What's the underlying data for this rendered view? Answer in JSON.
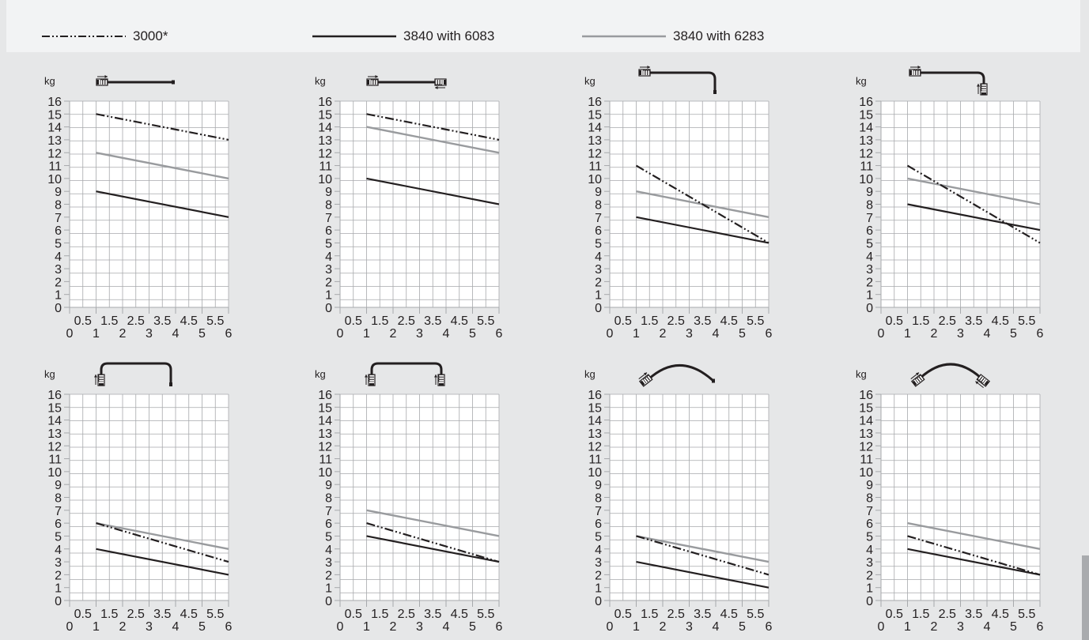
{
  "legend": {
    "items": [
      {
        "key": "s3000",
        "label": "3000*"
      },
      {
        "key": "s6083",
        "label": "3840 with 6083"
      },
      {
        "key": "s6283",
        "label": "3840 with 6283"
      }
    ]
  },
  "colors": {
    "s3000": "#231f20",
    "s6083": "#231f20",
    "s6283": "#999b9e",
    "grid": "#a7a9ac",
    "panel": "#ffffff",
    "text": "#231f20",
    "page": "#e6e7e8",
    "legend_bg": "#f2f3f4"
  },
  "icons": [
    "straight-feed-icon",
    "straight-two-feeds-icon",
    "curved-end-down-icon",
    "curved-end-feed-icon",
    "u-bend-icon",
    "u-bend-two-feeds-icon",
    "arc-icon",
    "arc-two-feeds-icon"
  ],
  "chart_data": [
    {
      "type": "line",
      "ylabel": "kg",
      "ylim": [
        0,
        16
      ],
      "xlim": [
        0,
        6
      ],
      "y_ticks": [
        "0",
        "1",
        "2",
        "3",
        "4",
        "5",
        "6",
        "7",
        "8",
        "9",
        "10",
        "11",
        "12",
        "13",
        "14",
        "15",
        "16"
      ],
      "x_ticks": [
        "0",
        "1",
        "2",
        "3",
        "4",
        "5",
        "6"
      ],
      "x_half_ticks": [
        "0.5",
        "1.5",
        "2.5",
        "3.5",
        "4.5",
        "5.5"
      ],
      "series": [
        {
          "key": "s3000",
          "points": [
            [
              1,
              15
            ],
            [
              6,
              13
            ]
          ]
        },
        {
          "key": "s6083",
          "points": [
            [
              1,
              9
            ],
            [
              6,
              7
            ]
          ]
        },
        {
          "key": "s6283",
          "points": [
            [
              1,
              12
            ],
            [
              6,
              10
            ]
          ]
        }
      ]
    },
    {
      "type": "line",
      "ylabel": "kg",
      "ylim": [
        0,
        16
      ],
      "xlim": [
        0,
        6
      ],
      "y_ticks": [
        "0",
        "1",
        "2",
        "3",
        "4",
        "5",
        "6",
        "7",
        "8",
        "9",
        "10",
        "11",
        "12",
        "13",
        "14",
        "15",
        "16"
      ],
      "x_ticks": [
        "0",
        "1",
        "2",
        "3",
        "4",
        "5",
        "6"
      ],
      "x_half_ticks": [
        "0.5",
        "1.5",
        "2.5",
        "3.5",
        "4.5",
        "5.5"
      ],
      "series": [
        {
          "key": "s3000",
          "points": [
            [
              1,
              15
            ],
            [
              6,
              13
            ]
          ]
        },
        {
          "key": "s6083",
          "points": [
            [
              1,
              10
            ],
            [
              6,
              8
            ]
          ]
        },
        {
          "key": "s6283",
          "points": [
            [
              1,
              14
            ],
            [
              6,
              12
            ]
          ]
        }
      ]
    },
    {
      "type": "line",
      "ylabel": "kg",
      "ylim": [
        0,
        16
      ],
      "xlim": [
        0,
        6
      ],
      "y_ticks": [
        "0",
        "1",
        "2",
        "3",
        "4",
        "5",
        "6",
        "7",
        "8",
        "9",
        "10",
        "11",
        "12",
        "13",
        "14",
        "15",
        "16"
      ],
      "x_ticks": [
        "0",
        "1",
        "2",
        "3",
        "4",
        "5",
        "6"
      ],
      "x_half_ticks": [
        "0.5",
        "1.5",
        "2.5",
        "3.5",
        "4.5",
        "5.5"
      ],
      "series": [
        {
          "key": "s3000",
          "points": [
            [
              1,
              11
            ],
            [
              6,
              5
            ]
          ]
        },
        {
          "key": "s6083",
          "points": [
            [
              1,
              7
            ],
            [
              6,
              5
            ]
          ]
        },
        {
          "key": "s6283",
          "points": [
            [
              1,
              9
            ],
            [
              6,
              7
            ]
          ]
        }
      ]
    },
    {
      "type": "line",
      "ylabel": "kg",
      "ylim": [
        0,
        16
      ],
      "xlim": [
        0,
        6
      ],
      "y_ticks": [
        "0",
        "1",
        "2",
        "3",
        "4",
        "5",
        "6",
        "7",
        "8",
        "9",
        "10",
        "11",
        "12",
        "13",
        "14",
        "15",
        "16"
      ],
      "x_ticks": [
        "0",
        "1",
        "2",
        "3",
        "4",
        "5",
        "6"
      ],
      "x_half_ticks": [
        "0.5",
        "1.5",
        "2.5",
        "3.5",
        "4.5",
        "5.5"
      ],
      "series": [
        {
          "key": "s3000",
          "points": [
            [
              1,
              11
            ],
            [
              6,
              5
            ]
          ]
        },
        {
          "key": "s6083",
          "points": [
            [
              1,
              8
            ],
            [
              6,
              6
            ]
          ]
        },
        {
          "key": "s6283",
          "points": [
            [
              1,
              10
            ],
            [
              6,
              8
            ]
          ]
        }
      ]
    },
    {
      "type": "line",
      "ylabel": "kg",
      "ylim": [
        0,
        16
      ],
      "xlim": [
        0,
        6
      ],
      "y_ticks": [
        "0",
        "1",
        "2",
        "3",
        "4",
        "5",
        "6",
        "7",
        "8",
        "9",
        "10",
        "11",
        "12",
        "13",
        "14",
        "15",
        "16"
      ],
      "x_ticks": [
        "0",
        "1",
        "2",
        "3",
        "4",
        "5",
        "6"
      ],
      "x_half_ticks": [
        "0.5",
        "1.5",
        "2.5",
        "3.5",
        "4.5",
        "5.5"
      ],
      "series": [
        {
          "key": "s3000",
          "points": [
            [
              1,
              6
            ],
            [
              6,
              3
            ]
          ]
        },
        {
          "key": "s6083",
          "points": [
            [
              1,
              4
            ],
            [
              6,
              2
            ]
          ]
        },
        {
          "key": "s6283",
          "points": [
            [
              1,
              6
            ],
            [
              6,
              4
            ]
          ]
        }
      ]
    },
    {
      "type": "line",
      "ylabel": "kg",
      "ylim": [
        0,
        16
      ],
      "xlim": [
        0,
        6
      ],
      "y_ticks": [
        "0",
        "1",
        "2",
        "3",
        "4",
        "5",
        "6",
        "7",
        "8",
        "9",
        "10",
        "11",
        "12",
        "13",
        "14",
        "15",
        "16"
      ],
      "x_ticks": [
        "0",
        "1",
        "2",
        "3",
        "4",
        "5",
        "6"
      ],
      "x_half_ticks": [
        "0.5",
        "1.5",
        "2.5",
        "3.5",
        "4.5",
        "5.5"
      ],
      "series": [
        {
          "key": "s3000",
          "points": [
            [
              1,
              6
            ],
            [
              6,
              3
            ]
          ]
        },
        {
          "key": "s6083",
          "points": [
            [
              1,
              5
            ],
            [
              6,
              3
            ]
          ]
        },
        {
          "key": "s6283",
          "points": [
            [
              1,
              7
            ],
            [
              6,
              5
            ]
          ]
        }
      ]
    },
    {
      "type": "line",
      "ylabel": "kg",
      "ylim": [
        0,
        16
      ],
      "xlim": [
        0,
        6
      ],
      "y_ticks": [
        "0",
        "1",
        "2",
        "3",
        "4",
        "5",
        "6",
        "7",
        "8",
        "9",
        "10",
        "11",
        "12",
        "13",
        "14",
        "15",
        "16"
      ],
      "x_ticks": [
        "0",
        "1",
        "2",
        "3",
        "4",
        "5",
        "6"
      ],
      "x_half_ticks": [
        "0.5",
        "1.5",
        "2.5",
        "3.5",
        "4.5",
        "5.5"
      ],
      "series": [
        {
          "key": "s3000",
          "points": [
            [
              1,
              5
            ],
            [
              6,
              2
            ]
          ]
        },
        {
          "key": "s6083",
          "points": [
            [
              1,
              3
            ],
            [
              6,
              1
            ]
          ]
        },
        {
          "key": "s6283",
          "points": [
            [
              1,
              5
            ],
            [
              6,
              3
            ]
          ]
        }
      ]
    },
    {
      "type": "line",
      "ylabel": "kg",
      "ylim": [
        0,
        16
      ],
      "xlim": [
        0,
        6
      ],
      "y_ticks": [
        "0",
        "1",
        "2",
        "3",
        "4",
        "5",
        "6",
        "7",
        "8",
        "9",
        "10",
        "11",
        "12",
        "13",
        "14",
        "15",
        "16"
      ],
      "x_ticks": [
        "0",
        "1",
        "2",
        "3",
        "4",
        "5",
        "6"
      ],
      "x_half_ticks": [
        "0.5",
        "1.5",
        "2.5",
        "3.5",
        "4.5",
        "5.5"
      ],
      "series": [
        {
          "key": "s3000",
          "points": [
            [
              1,
              5
            ],
            [
              6,
              2
            ]
          ]
        },
        {
          "key": "s6083",
          "points": [
            [
              1,
              4
            ],
            [
              6,
              2
            ]
          ]
        },
        {
          "key": "s6283",
          "points": [
            [
              1,
              6
            ],
            [
              6,
              4
            ]
          ]
        }
      ]
    }
  ]
}
